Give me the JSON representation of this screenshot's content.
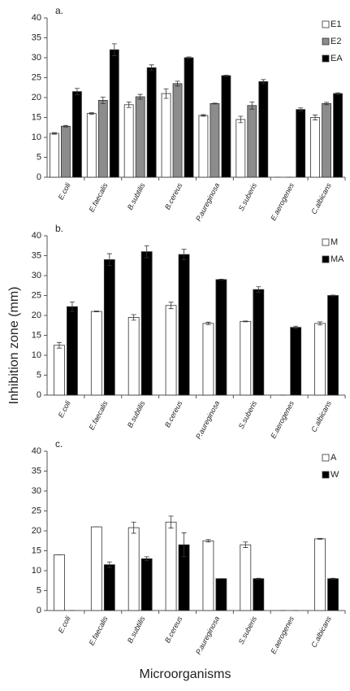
{
  "ylabel": "Inhibition zone (mm)",
  "xlabel": "Microorganisms",
  "chart_data": [
    {
      "type": "bar",
      "title": "a.",
      "legend": "upper right",
      "categories": [
        "E.coli",
        "E.faecalis",
        "B.subtilis",
        "B.cereus",
        "P.aureginosa",
        "S.suberis",
        "E.aerogenes",
        "C.albicans"
      ],
      "ylim": [
        0,
        40
      ],
      "yticks": [
        0,
        5,
        10,
        15,
        20,
        25,
        30,
        35,
        40
      ],
      "series": [
        {
          "name": "E1",
          "color": "#ffffff",
          "values": [
            11,
            16,
            18.2,
            21,
            15.5,
            14.5,
            0,
            15
          ],
          "errors": [
            0.2,
            0.2,
            0.7,
            1.2,
            0.2,
            0.8,
            0,
            0.6
          ]
        },
        {
          "name": "E2",
          "color": "#8c8c8c",
          "values": [
            12.8,
            19.3,
            20.2,
            23.5,
            18.5,
            18,
            0,
            18.5
          ],
          "errors": [
            0.2,
            0.8,
            0.6,
            0.6,
            0.1,
            0.9,
            0,
            0.3
          ]
        },
        {
          "name": "EA",
          "color": "#000000",
          "values": [
            21.5,
            32,
            27.5,
            30,
            25.5,
            24,
            17,
            21
          ],
          "errors": [
            0.8,
            1.5,
            0.7,
            0.2,
            0.1,
            0.5,
            0.4,
            0.2
          ]
        }
      ]
    },
    {
      "type": "bar",
      "title": "b.",
      "legend": "upper right",
      "categories": [
        "E.coli",
        "E.faecalis",
        "B.subtilis",
        "B.cereus",
        "P.aureginosa",
        "S.suberis",
        "E.aerogenes",
        "C.albicans"
      ],
      "ylim": [
        0,
        40
      ],
      "yticks": [
        0,
        5,
        10,
        15,
        20,
        25,
        30,
        35,
        40
      ],
      "series": [
        {
          "name": "M",
          "color": "#ffffff",
          "values": [
            12.5,
            21,
            19.5,
            22.5,
            18,
            18.5,
            0,
            18
          ],
          "errors": [
            0.7,
            0.1,
            0.7,
            0.8,
            0.3,
            0.1,
            0,
            0.4
          ]
        },
        {
          "name": "MA",
          "color": "#000000",
          "values": [
            22.2,
            34,
            36,
            35.3,
            29,
            26.5,
            17,
            25
          ],
          "errors": [
            1.2,
            1.5,
            1.5,
            1.3,
            0.1,
            0.7,
            0.3,
            0.1
          ]
        }
      ]
    },
    {
      "type": "bar",
      "title": "c.",
      "legend": "upper right",
      "categories": [
        "E.coli",
        "E.faecalis",
        "B.subtilis",
        "B.cereus",
        "P.aureginosa",
        "S.suberis",
        "E.aerogenes",
        "C.albicans"
      ],
      "ylim": [
        0,
        40
      ],
      "yticks": [
        0,
        5,
        10,
        15,
        20,
        25,
        30,
        35,
        40
      ],
      "series": [
        {
          "name": "A",
          "color": "#ffffff",
          "values": [
            14,
            21,
            20.8,
            22.2,
            17.5,
            16.5,
            0,
            18
          ],
          "errors": [
            0,
            0,
            1.4,
            1.5,
            0.3,
            0.7,
            0,
            0.1
          ]
        },
        {
          "name": "W",
          "color": "#000000",
          "values": [
            0,
            11.5,
            13,
            16.5,
            8,
            8,
            0,
            8
          ],
          "errors": [
            0,
            0.7,
            0.5,
            3,
            0,
            0.1,
            0,
            0.1
          ]
        }
      ]
    }
  ]
}
